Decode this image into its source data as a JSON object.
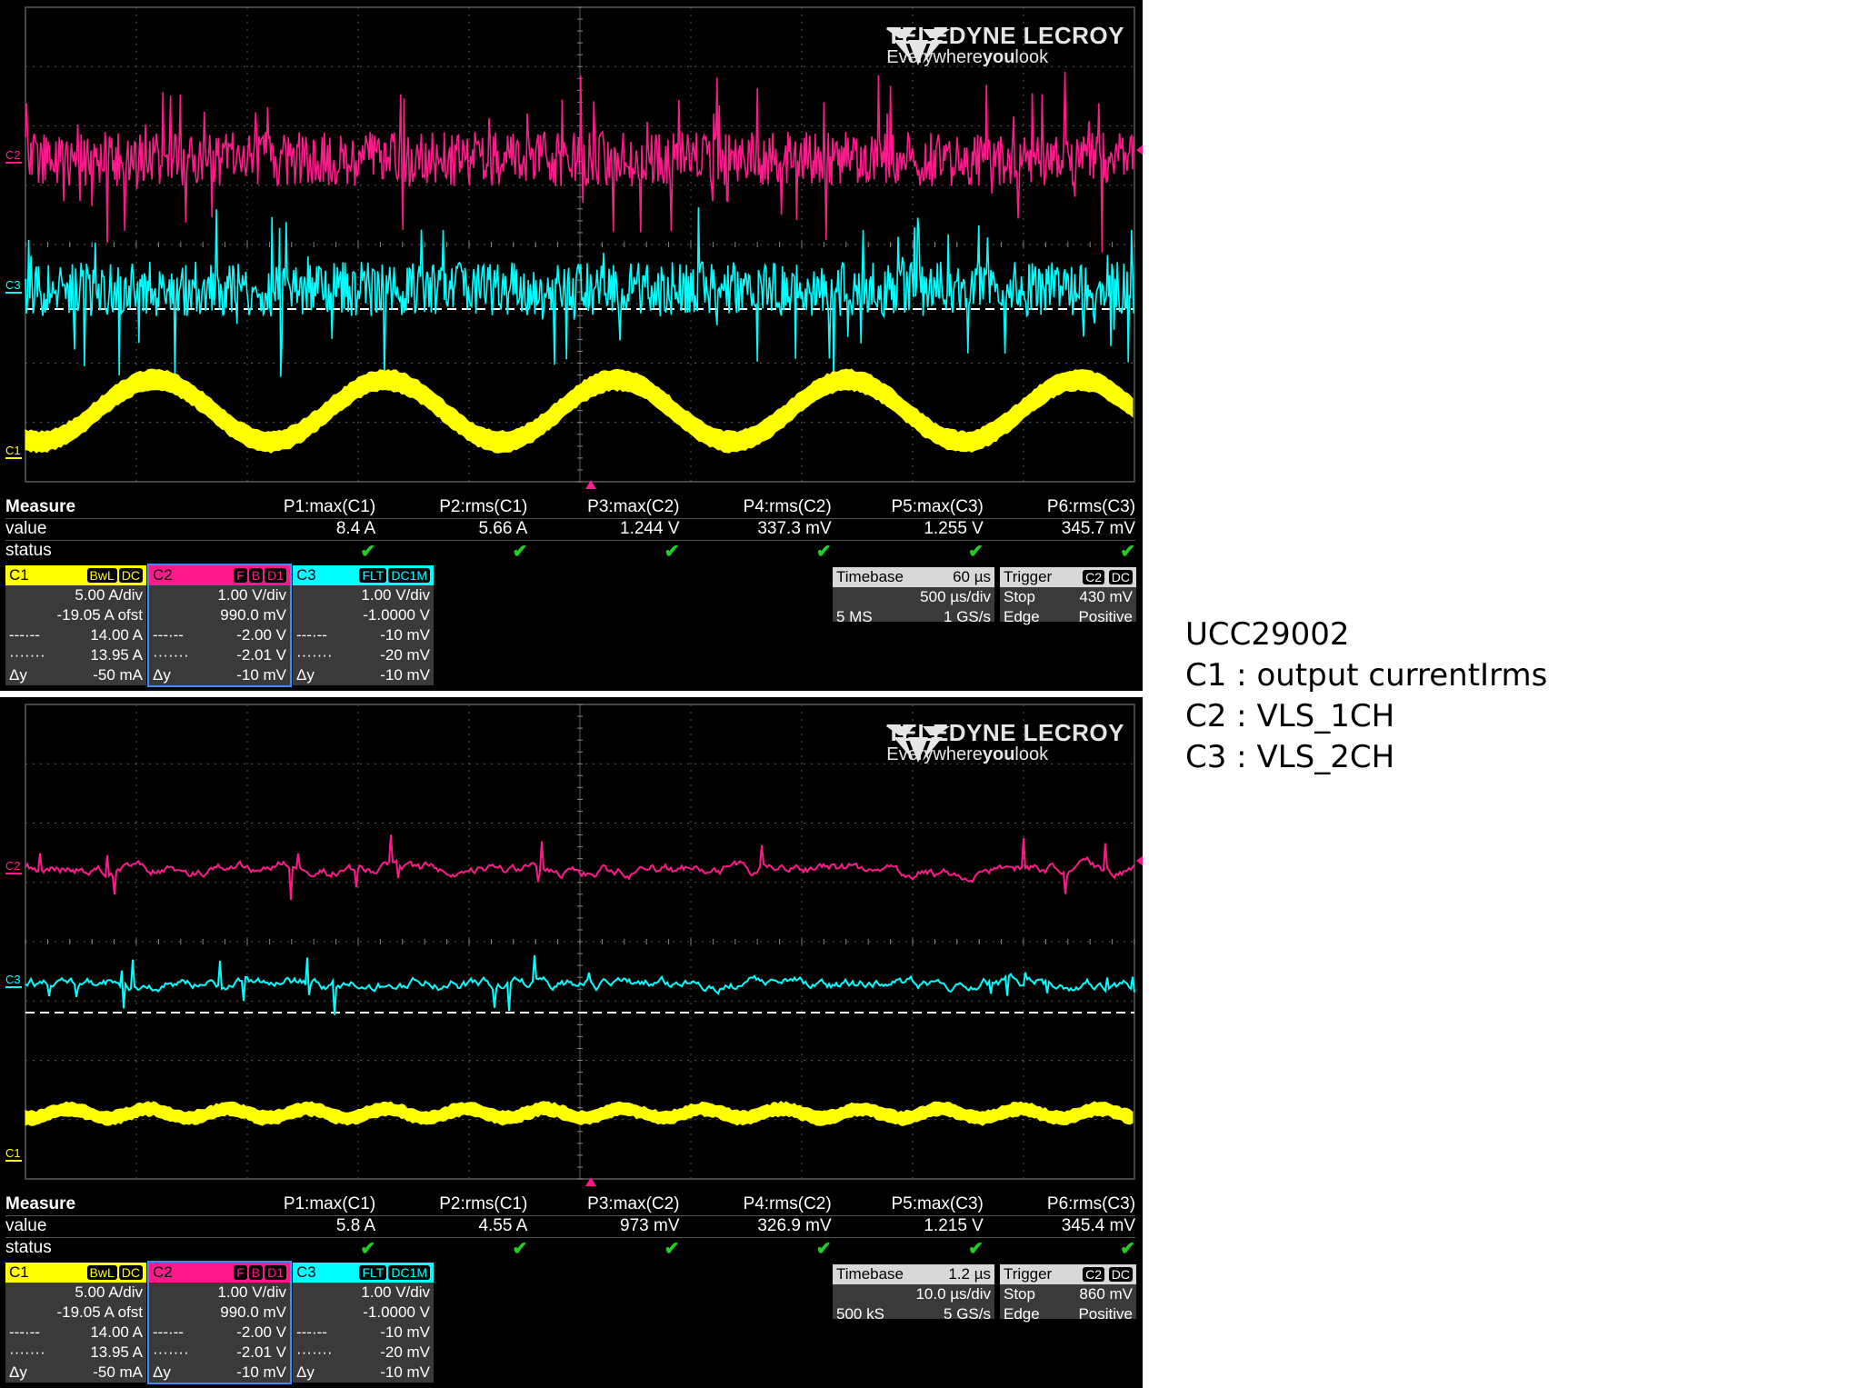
{
  "annotation": {
    "lines": [
      "UCC29002",
      "C1 : output currentIrms",
      "C2 : VLS_1CH",
      "C3 : VLS_2CH"
    ]
  },
  "logo": {
    "brand": "TELEDYNE LECROY",
    "tagline_a": "Everywhere",
    "tagline_b": "you",
    "tagline_c": "look"
  },
  "colors": {
    "C1": "#ffff00",
    "C2": "#ff1a8c",
    "C3": "#00ffff",
    "grid": "#5a5a5a"
  },
  "scopes": [
    {
      "measure_header": [
        "Measure",
        "P1:max(C1)",
        "P2:rms(C1)",
        "P3:max(C2)",
        "P4:rms(C2)",
        "P5:max(C3)",
        "P6:rms(C3)"
      ],
      "value_row": [
        "value",
        "8.4 A",
        "5.66 A",
        "1.244 V",
        "337.3 mV",
        "1.255 V",
        "345.7 mV"
      ],
      "status_label": "status",
      "channels": [
        {
          "name": "C1",
          "tags": [
            "BwL",
            "DC"
          ],
          "scale": "5.00 A/div",
          "offset": "-19.05 A ofst",
          "cur1": "14.00 A",
          "cur2": "13.95 A",
          "dy_label": "Δy",
          "dy": "-50 mA"
        },
        {
          "name": "C2",
          "tags": [
            "F",
            "B",
            "D1"
          ],
          "scale": "1.00 V/div",
          "offset": "990.0 mV",
          "cur1": "-2.00 V",
          "cur2": "-2.01 V",
          "dy_label": "Δy",
          "dy": "-10 mV"
        },
        {
          "name": "C3",
          "tags": [
            "FLT",
            "DC1M"
          ],
          "scale": "1.00 V/div",
          "offset": "-1.0000 V",
          "cur1": "-10 mV",
          "cur2": "-20 mV",
          "dy_label": "Δy",
          "dy": "-10 mV"
        }
      ],
      "timebase": {
        "label": "Timebase",
        "delay": "60 µs",
        "tdiv": "500 µs/div",
        "samples": "5 MS",
        "rate": "1 GS/s"
      },
      "trigger": {
        "label": "Trigger",
        "src": "C2",
        "coupling": "DC",
        "mode": "Stop",
        "level": "430 mV",
        "type": "Edge",
        "slope": "Positive"
      },
      "waveform": {
        "c1_style": "sine",
        "c1_cycles": 4.8,
        "noise": "dense"
      }
    },
    {
      "measure_header": [
        "Measure",
        "P1:max(C1)",
        "P2:rms(C1)",
        "P3:max(C2)",
        "P4:rms(C2)",
        "P5:max(C3)",
        "P6:rms(C3)"
      ],
      "value_row": [
        "value",
        "5.8 A",
        "4.55 A",
        "973 mV",
        "326.9 mV",
        "1.215 V",
        "345.4 mV"
      ],
      "status_label": "status",
      "channels": [
        {
          "name": "C1",
          "tags": [
            "BwL",
            "DC"
          ],
          "scale": "5.00 A/div",
          "offset": "-19.05 A ofst",
          "cur1": "14.00 A",
          "cur2": "13.95 A",
          "dy_label": "Δy",
          "dy": "-50 mA"
        },
        {
          "name": "C2",
          "tags": [
            "F",
            "B",
            "D1"
          ],
          "scale": "1.00 V/div",
          "offset": "990.0 mV",
          "cur1": "-2.00 V",
          "cur2": "-2.01 V",
          "dy_label": "Δy",
          "dy": "-10 mV"
        },
        {
          "name": "C3",
          "tags": [
            "FLT",
            "DC1M"
          ],
          "scale": "1.00 V/div",
          "offset": "-1.0000 V",
          "cur1": "-10 mV",
          "cur2": "-20 mV",
          "dy_label": "Δy",
          "dy": "-10 mV"
        }
      ],
      "timebase": {
        "label": "Timebase",
        "delay": "1.2 µs",
        "tdiv": "10.0 µs/div",
        "samples": "500 kS",
        "rate": "5 GS/s"
      },
      "trigger": {
        "label": "Trigger",
        "src": "C2",
        "coupling": "DC",
        "mode": "Stop",
        "level": "860 mV",
        "type": "Edge",
        "slope": "Positive"
      },
      "waveform": {
        "c1_style": "ripple",
        "c1_cycles": 14,
        "noise": "sparse"
      }
    }
  ],
  "chart_data": [
    {
      "type": "line",
      "title": "",
      "series": [
        {
          "name": "C1",
          "unit": "A",
          "max": 8.4,
          "rms": 5.66
        },
        {
          "name": "C2",
          "unit": "V",
          "max": 1.244,
          "rms": 0.3373
        },
        {
          "name": "C3",
          "unit": "V",
          "max": 1.255,
          "rms": 0.3457
        }
      ],
      "grid": true
    },
    {
      "type": "line",
      "title": "",
      "series": [
        {
          "name": "C1",
          "unit": "A",
          "max": 5.8,
          "rms": 4.55
        },
        {
          "name": "C2",
          "unit": "V",
          "max": 0.973,
          "rms": 0.3269
        },
        {
          "name": "C3",
          "unit": "V",
          "max": 1.215,
          "rms": 0.3454
        }
      ],
      "grid": true
    }
  ]
}
